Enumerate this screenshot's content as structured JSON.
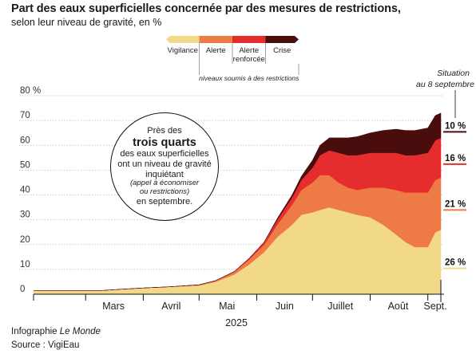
{
  "header": {
    "title": "Part des eaux superficielles concernée par des mesures de restrictions,",
    "subtitle": "selon leur niveau de gravité, en %"
  },
  "legend": {
    "items": [
      {
        "label": "Vigilance",
        "color": "#f2d98a"
      },
      {
        "label": "Alerte",
        "color": "#ee7a46"
      },
      {
        "label": "Alerte renforcée",
        "color": "#e52d2d"
      },
      {
        "label": "Crise",
        "color": "#4a0d0d"
      }
    ],
    "note": "niveaux soumis à des restrictions"
  },
  "annotation": {
    "line1": "Situation",
    "line2": "au 8 septembre"
  },
  "callout": {
    "line1": "Près des",
    "line2": "trois quarts",
    "line3": "des eaux superficielles",
    "line4": "ont un niveau de gravité",
    "line5": "inquiétant",
    "line6": "(appel à économiser",
    "line7": "ou restrictions)",
    "line8": "en septembre."
  },
  "footer": {
    "credit_prefix": "Infographie ",
    "credit_name": "Le Monde",
    "source": "Source : VigiEau"
  },
  "chart_data": {
    "type": "area",
    "stacked": true,
    "x_label": "2025",
    "x_domain": [
      "2025-02-01",
      "2025-09-08"
    ],
    "month_ticks": [
      "2025-02-01",
      "2025-03-01",
      "2025-04-01",
      "2025-05-01",
      "2025-06-01",
      "2025-07-01",
      "2025-08-01",
      "2025-09-01"
    ],
    "month_labels": [
      {
        "label": "Mars",
        "date": "2025-03-16"
      },
      {
        "label": "Avril",
        "date": "2025-04-16"
      },
      {
        "label": "Mai",
        "date": "2025-05-16"
      },
      {
        "label": "Juin",
        "date": "2025-06-16"
      },
      {
        "label": "Juillet",
        "date": "2025-07-16"
      },
      {
        "label": "Août",
        "date": "2025-08-16"
      },
      {
        "label": "Sept.",
        "date": "2025-09-05"
      }
    ],
    "ylim": [
      0,
      80
    ],
    "yticks": [
      0,
      10,
      20,
      30,
      40,
      50,
      60,
      70,
      80
    ],
    "ytick_labels": [
      "0",
      "10",
      "20",
      "30",
      "40",
      "50",
      "60",
      "70",
      "80 %"
    ],
    "dates": [
      "2025-02-01",
      "2025-02-20",
      "2025-03-10",
      "2025-03-20",
      "2025-04-01",
      "2025-04-15",
      "2025-05-01",
      "2025-05-10",
      "2025-05-20",
      "2025-05-28",
      "2025-06-05",
      "2025-06-12",
      "2025-06-20",
      "2025-06-25",
      "2025-07-01",
      "2025-07-05",
      "2025-07-10",
      "2025-07-15",
      "2025-07-20",
      "2025-07-25",
      "2025-08-01",
      "2025-08-08",
      "2025-08-15",
      "2025-08-20",
      "2025-08-25",
      "2025-09-01",
      "2025-09-05",
      "2025-09-08"
    ],
    "series": [
      {
        "name": "Vigilance",
        "color": "#f2d98a",
        "values": [
          1.5,
          1.5,
          1.5,
          2,
          2.5,
          3,
          3.5,
          5,
          8,
          12,
          17,
          23,
          28,
          32,
          33,
          34,
          35,
          34,
          33,
          32,
          31,
          28,
          24,
          21,
          19,
          19,
          25,
          26
        ]
      },
      {
        "name": "Alerte",
        "color": "#ee7a46",
        "values": [
          0,
          0,
          0,
          0,
          0,
          0,
          0.3,
          0.5,
          1,
          2,
          3,
          5,
          8,
          10,
          12,
          14,
          13,
          11,
          10,
          10,
          12,
          15,
          18,
          20,
          22,
          22,
          21,
          21
        ]
      },
      {
        "name": "Alerte renforcée",
        "color": "#e52d2d",
        "values": [
          0,
          0,
          0,
          0,
          0,
          0,
          0,
          0,
          0.2,
          0.5,
          1,
          2,
          3,
          4,
          6,
          8,
          10,
          12,
          13,
          14,
          14,
          14,
          15,
          15,
          15,
          16,
          16,
          16
        ]
      },
      {
        "name": "Crise",
        "color": "#4a0d0d",
        "values": [
          0,
          0,
          0,
          0,
          0,
          0,
          0,
          0,
          0,
          0,
          0,
          0.5,
          1,
          1.5,
          3,
          4,
          5,
          6,
          7,
          7.5,
          8,
          9,
          9.5,
          10,
          10,
          10,
          10,
          10
        ]
      }
    ],
    "end_labels": [
      {
        "series": "Crise",
        "label": "10 %"
      },
      {
        "series": "Alerte renforcée",
        "label": "16 %"
      },
      {
        "series": "Alerte",
        "label": "21 %"
      },
      {
        "series": "Vigilance",
        "label": "26 %"
      }
    ]
  }
}
